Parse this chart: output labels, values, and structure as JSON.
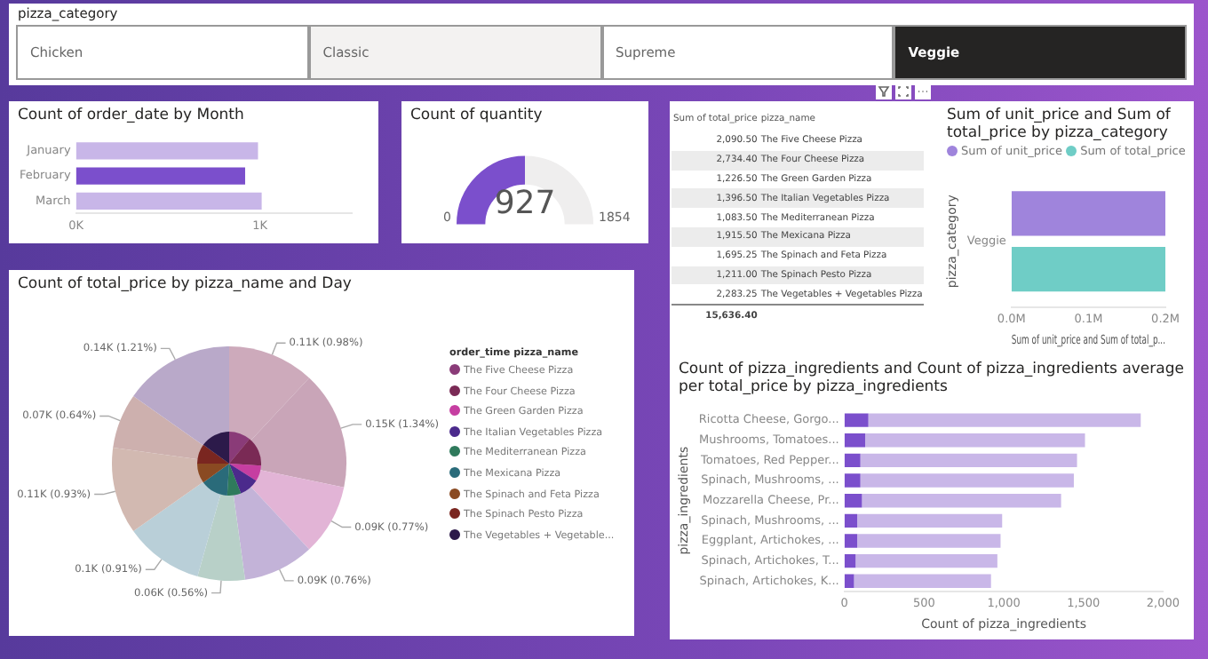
{
  "chart_data": [
    {
      "type": "other",
      "title": "pizza_category",
      "categories": [
        "Chicken",
        "Classic",
        "Supreme",
        "Veggie"
      ],
      "colors": [
        "#ffffff",
        "#f3f2f1",
        "#ffffff",
        "#252423"
      ]
    },
    {
      "type": "bar",
      "orientation": "horizontal",
      "title": "Count of order_date by Month",
      "categories": [
        "January",
        "February",
        "March"
      ],
      "values": [
        990,
        920,
        1010
      ],
      "colors": [
        "#c8b6e8",
        "#7b4fcc",
        "#c8b6e8"
      ],
      "xlim": [
        0,
        1500
      ],
      "xticks": [
        {
          "value": 0,
          "label": "0K"
        },
        {
          "value": 1000,
          "label": "1K"
        }
      ],
      "grid": false
    },
    {
      "type": "donut",
      "title": "Count of quantity",
      "categories": [
        null,
        null
      ],
      "values": [
        927,
        927
      ],
      "colors": [
        "#7b4fcc",
        "#efeeee"
      ],
      "value_labels": [
        "927",
        null
      ],
      "annotations": [
        "0",
        "1854"
      ]
    },
    {
      "type": "other",
      "annotations": [
        "Sum of total_price",
        "pizza_name"
      ],
      "categories": [
        "The Five Cheese Pizza",
        "The Four Cheese Pizza",
        "The Green Garden Pizza",
        "The Italian Vegetables Pizza",
        "The Mediterranean Pizza",
        "The Mexicana Pizza",
        "The Spinach and Feta Pizza",
        "The Spinach Pesto Pizza",
        "The Vegetables + Vegetables Pizza"
      ],
      "value_labels": [
        "2,090.50",
        "2,734.40",
        "1,226.50",
        "1,396.50",
        "1,083.50",
        "1,915.50",
        "1,695.25",
        "1,211.00",
        "2,283.25"
      ],
      "totals": [
        "15,636.40"
      ]
    },
    {
      "type": "bar",
      "orientation": "horizontal",
      "title": "Sum of unit_price and Sum of total_price by pizza_category",
      "xlabel": "Sum of unit_price and Sum of total_p...",
      "ylabel": "pizza_category",
      "categories": [
        "Veggie"
      ],
      "legend": "top left",
      "grid": false,
      "xlim": [
        0,
        0.2
      ],
      "xticks": [
        {
          "value": 0,
          "label": "0.0M"
        },
        {
          "value": 0.1,
          "label": "0.1M"
        },
        {
          "value": 0.2,
          "label": "0.2M"
        }
      ],
      "series": [
        {
          "name": "Sum of unit_price",
          "color": "#9f84dc",
          "values": [
            0.2
          ]
        },
        {
          "name": "Sum of total_price",
          "color": "#6fcdc6",
          "values": [
            0.2
          ]
        }
      ]
    },
    {
      "type": "pie",
      "title": "Count of total_price by pizza_name and Day",
      "categories": [
        null,
        null,
        null,
        null,
        null,
        null,
        null,
        null,
        null
      ],
      "values": [
        110,
        150,
        90,
        90,
        60,
        100,
        110,
        70,
        140
      ],
      "value_labels": [
        "0.11K (0.98%)",
        "0.15K (1.34%)",
        "0.09K (0.77%)",
        "0.09K (0.76%)",
        "0.06K (0.56%)",
        "0.1K (0.91%)",
        "0.11K (0.93%)",
        "0.07K (0.64%)",
        "0.14K (1.21%)"
      ],
      "colors": [
        "#cdaabb",
        "#c9a5b8",
        "#e2b4d6",
        "#c3b3d8",
        "#b8d0c8",
        "#b9cfd8",
        "#d2b9b1",
        "#cdb0ae",
        "#b9a9c9"
      ]
    },
    {
      "type": "pie",
      "legend": "right",
      "legend_title": "order_time pizza_name",
      "categories": [
        "The Five Cheese Pizza",
        "The Four Cheese Pizza",
        "The Green Garden Pizza",
        "The Italian Vegetables Pizza",
        "The Mediterranean Pizza",
        "The Mexicana Pizza",
        "The Spinach and Feta Pizza",
        "The Spinach Pesto Pizza",
        "The Vegetables + Vegetable..."
      ],
      "values": [
        11,
        15,
        8,
        10,
        7,
        14,
        10,
        10,
        15
      ],
      "colors": [
        "#8a3b78",
        "#7a2a55",
        "#c63ea1",
        "#4b2a8c",
        "#2f7a5c",
        "#2a6b7a",
        "#8a4a22",
        "#7a2620",
        "#2c1a4a"
      ]
    },
    {
      "type": "bar",
      "orientation": "horizontal",
      "stacked": true,
      "title": "Count of pizza_ingredients and Count of pizza_ingredients average per total_price by pizza_ingredients",
      "xlabel": "Count of pizza_ingredients",
      "ylabel": "pizza_ingredients",
      "grid": false,
      "categories": [
        "Ricotta Cheese, Gorgo...",
        "Mushrooms, Tomatoes...",
        "Tomatoes, Red Pepper...",
        "Spinach, Mushrooms, ...",
        "Mozzarella Cheese, Pr...",
        "Spinach, Mushrooms, ...",
        "Eggplant, Artichokes, ...",
        "Spinach, Artichokes, T...",
        "Spinach, Artichokes, K..."
      ],
      "xlim": [
        0,
        2000
      ],
      "xticks": [
        0,
        500,
        {
          "value": 1000,
          "label": "1,000"
        },
        {
          "value": 1500,
          "label": "1,500"
        },
        {
          "value": 2000,
          "label": "2,000"
        }
      ],
      "series": [
        {
          "color": "#7b4fcc",
          "values": [
            150,
            130,
            100,
            100,
            110,
            80,
            80,
            70,
            60
          ]
        },
        {
          "color": "#c9b7e8",
          "values": [
            1710,
            1380,
            1360,
            1340,
            1250,
            910,
            900,
            890,
            860
          ]
        }
      ]
    }
  ]
}
